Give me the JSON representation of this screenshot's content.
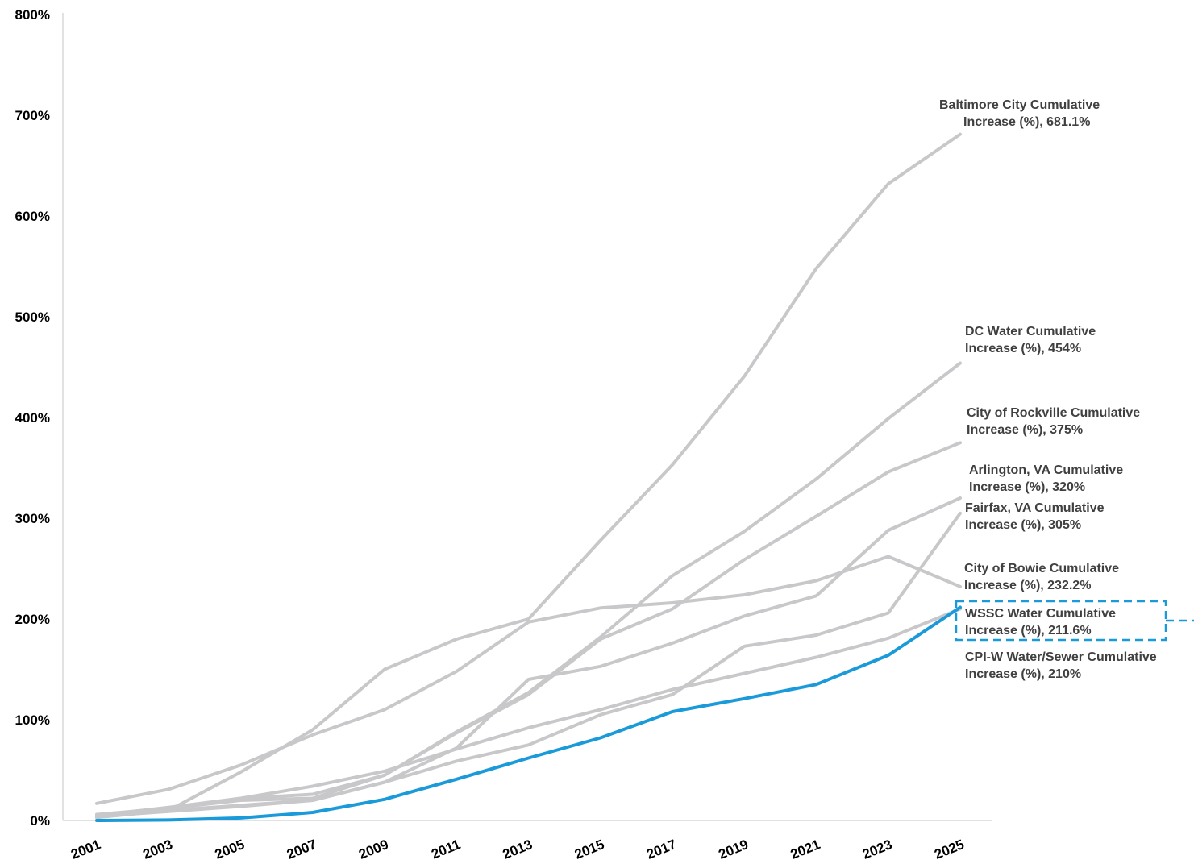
{
  "colors": {
    "background": "#ffffff",
    "axis": "#d9d9d9",
    "comparison_series": "#c8c8cb",
    "highlight_series": "#1a9ad9",
    "tick_text": "#000000",
    "label_text": "#404040",
    "callout_border": "#1a9ad9"
  },
  "chart_data": {
    "type": "line",
    "title": "",
    "xlabel": "",
    "ylabel": "",
    "grid": false,
    "legend": "none (direct end-of-line labels)",
    "ylim": [
      0,
      800
    ],
    "y_ticks": [
      "0%",
      "100%",
      "200%",
      "300%",
      "400%",
      "500%",
      "600%",
      "700%",
      "800%"
    ],
    "x": [
      "2001",
      "2003",
      "2005",
      "2007",
      "2009",
      "2011",
      "2013",
      "2015",
      "2017",
      "2019",
      "2021",
      "2023",
      "2025"
    ],
    "series": [
      {
        "name": "Baltimore City Cumulative Increase (%)",
        "end_label": "681.1%",
        "highlight": false,
        "values": [
          3,
          10,
          48,
          90,
          150,
          180,
          200,
          278,
          353,
          441,
          548,
          632,
          681.1
        ]
      },
      {
        "name": "DC Water Cumulative Increase (%)",
        "end_label": "454%",
        "highlight": false,
        "values": [
          3,
          12,
          20,
          22,
          45,
          88,
          127,
          182,
          243,
          287,
          339,
          399,
          454
        ]
      },
      {
        "name": "City of Rockville Cumulative Increase (%)",
        "end_label": "375%",
        "highlight": false,
        "values": [
          5,
          13,
          22,
          26,
          45,
          87,
          125,
          180,
          210,
          259,
          302,
          346,
          375
        ]
      },
      {
        "name": "Arlington, VA Cumulative Increase (%)",
        "end_label": "320%",
        "highlight": false,
        "values": [
          5,
          10,
          15,
          20,
          38,
          72,
          140,
          153,
          176,
          203,
          223,
          288,
          320
        ]
      },
      {
        "name": "Fairfax, VA Cumulative Increase (%)",
        "end_label": "305%",
        "highlight": false,
        "values": [
          4,
          9,
          14,
          20,
          38,
          59,
          75,
          105,
          125,
          173,
          184,
          206,
          305
        ]
      },
      {
        "name": "City of Bowie Cumulative Increase (%)",
        "end_label": "232.2%",
        "highlight": false,
        "values": [
          17,
          31,
          55,
          85,
          110,
          148,
          197,
          211,
          216,
          224,
          238,
          262,
          232.2
        ]
      },
      {
        "name": "CPI-W Water/Sewer Cumulative Increase (%)",
        "end_label": "210%",
        "highlight": false,
        "values": [
          6,
          12,
          22,
          34,
          49,
          71,
          92,
          110,
          130,
          146,
          162,
          181,
          210
        ]
      },
      {
        "name": "WSSC Water Cumulative Increase (%)",
        "end_label": "211.6%",
        "highlight": true,
        "values": [
          0,
          0.5,
          2.5,
          8,
          21,
          41,
          62,
          82,
          108,
          121,
          135,
          164,
          211.6
        ]
      }
    ],
    "labels": [
      {
        "series": "Baltimore City Cumulative Increase (%)",
        "lines": [
          "Baltimore City Cumulative",
          "Increase (%), 681.1%"
        ],
        "callout": false
      },
      {
        "series": "DC Water Cumulative Increase (%)",
        "lines": [
          "DC Water Cumulative",
          "Increase (%), 454%"
        ],
        "callout": false
      },
      {
        "series": "City of Rockville Cumulative Increase (%)",
        "lines": [
          "City of Rockville Cumulative",
          "Increase (%), 375%"
        ],
        "callout": false
      },
      {
        "series": "Arlington, VA Cumulative Increase (%)",
        "lines": [
          "Arlington, VA Cumulative",
          "Increase (%), 320%"
        ],
        "callout": false
      },
      {
        "series": "Fairfax, VA Cumulative Increase (%)",
        "lines": [
          "Fairfax, VA Cumulative",
          "Increase (%), 305%"
        ],
        "callout": false
      },
      {
        "series": "City of Bowie Cumulative Increase (%)",
        "lines": [
          "City of Bowie Cumulative",
          "Increase (%), 232.2%"
        ],
        "callout": false
      },
      {
        "series": "WSSC Water Cumulative Increase (%)",
        "lines": [
          "WSSC Water Cumulative",
          "Increase (%), 211.6%"
        ],
        "callout": true
      },
      {
        "series": "CPI-W Water/Sewer Cumulative Increase (%)",
        "lines": [
          "CPI-W Water/Sewer Cumulative",
          "Increase (%), 210%"
        ],
        "callout": false
      }
    ]
  }
}
